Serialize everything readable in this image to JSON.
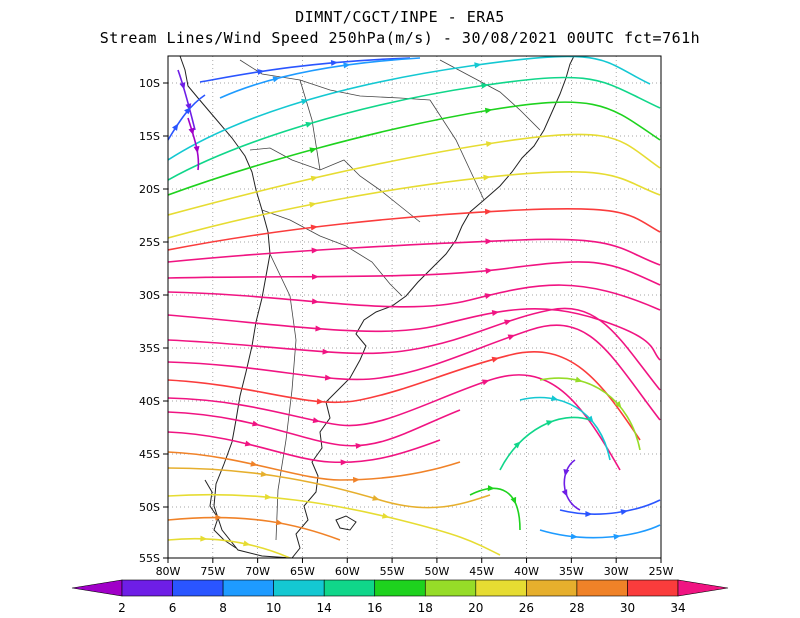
{
  "header": {
    "line1": "DIMNT/CGCT/INPE -  ERA5",
    "line2": "Stream Lines/Wind Speed 250hPa(m/s) -  30/08/2021 00UTC fct=761h"
  },
  "map": {
    "lat_labels": [
      "10S",
      "15S",
      "20S",
      "25S",
      "30S",
      "35S",
      "40S",
      "45S",
      "50S",
      "55S"
    ],
    "lon_labels": [
      "80W",
      "75W",
      "70W",
      "65W",
      "60W",
      "55W",
      "50W",
      "45W",
      "40W",
      "35W",
      "30W",
      "25W"
    ],
    "grid": true
  },
  "legend": {
    "labels": [
      "2",
      "6",
      "8",
      "10",
      "14",
      "16",
      "18",
      "20",
      "26",
      "28",
      "30",
      "34"
    ],
    "colors": [
      "#a000c8",
      "#6e1ee6",
      "#2a55ff",
      "#1e9bff",
      "#14c8d2",
      "#10d68a",
      "#1ed21e",
      "#96dc28",
      "#e6dc32",
      "#e6af2d",
      "#f08228",
      "#fa3c3c",
      "#f01482"
    ]
  }
}
